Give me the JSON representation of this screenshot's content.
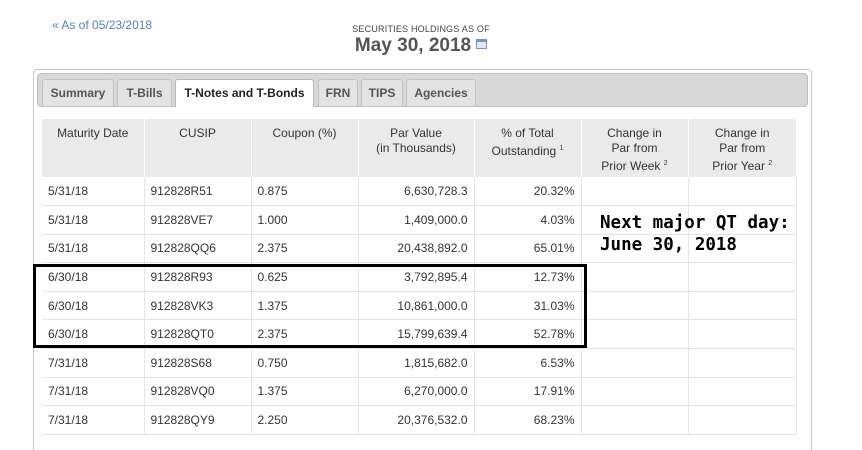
{
  "back_link": "« As of 05/23/2018",
  "header": {
    "subtitle": "SECURITIES HOLDINGS AS OF",
    "date": "May 30, 2018"
  },
  "icons": {
    "calendar": "calendar-icon"
  },
  "tabs": [
    {
      "label": "Summary",
      "active": false
    },
    {
      "label": "T-Bills",
      "active": false
    },
    {
      "label": "T-Notes and T-Bonds",
      "active": true
    },
    {
      "label": "FRN",
      "active": false
    },
    {
      "label": "TIPS",
      "active": false
    },
    {
      "label": "Agencies",
      "active": false
    }
  ],
  "table": {
    "headers": {
      "maturity": "Maturity Date",
      "cusip": "CUSIP",
      "coupon": "Coupon (%)",
      "par_line1": "Par Value",
      "par_line2": "(in Thousands)",
      "pct_line1": "% of Total",
      "pct_line2": "Outstanding",
      "pct_note": "1",
      "week_line1": "Change in",
      "week_line2": "Par from",
      "week_line3": "Prior Week",
      "week_note": "2",
      "year_line1": "Change in",
      "year_line2": "Par from",
      "year_line3": "Prior Year",
      "year_note": "2"
    },
    "rows": [
      {
        "maturity": "5/31/18",
        "cusip": "912828R51",
        "coupon": "0.875",
        "par": "6,630,728.3",
        "pct": "20.32%"
      },
      {
        "maturity": "5/31/18",
        "cusip": "912828VE7",
        "coupon": "1.000",
        "par": "1,409,000.0",
        "pct": "4.03%"
      },
      {
        "maturity": "5/31/18",
        "cusip": "912828QQ6",
        "coupon": "2.375",
        "par": "20,438,892.0",
        "pct": "65.01%"
      },
      {
        "maturity": "6/30/18",
        "cusip": "912828R93",
        "coupon": "0.625",
        "par": "3,792,895.4",
        "pct": "12.73%"
      },
      {
        "maturity": "6/30/18",
        "cusip": "912828VK3",
        "coupon": "1.375",
        "par": "10,861,000.0",
        "pct": "31.03%"
      },
      {
        "maturity": "6/30/18",
        "cusip": "912828QT0",
        "coupon": "2.375",
        "par": "15,799,639.4",
        "pct": "52.78%"
      },
      {
        "maturity": "7/31/18",
        "cusip": "912828S68",
        "coupon": "0.750",
        "par": "1,815,682.0",
        "pct": "6.53%"
      },
      {
        "maturity": "7/31/18",
        "cusip": "912828VQ0",
        "coupon": "1.375",
        "par": "6,270,000.0",
        "pct": "17.91%"
      },
      {
        "maturity": "7/31/18",
        "cusip": "912828QY9",
        "coupon": "2.250",
        "par": "20,376,532.0",
        "pct": "68.23%"
      }
    ]
  },
  "annotation": {
    "line1": "Next major QT day:",
    "line2": "June 30, 2018"
  }
}
